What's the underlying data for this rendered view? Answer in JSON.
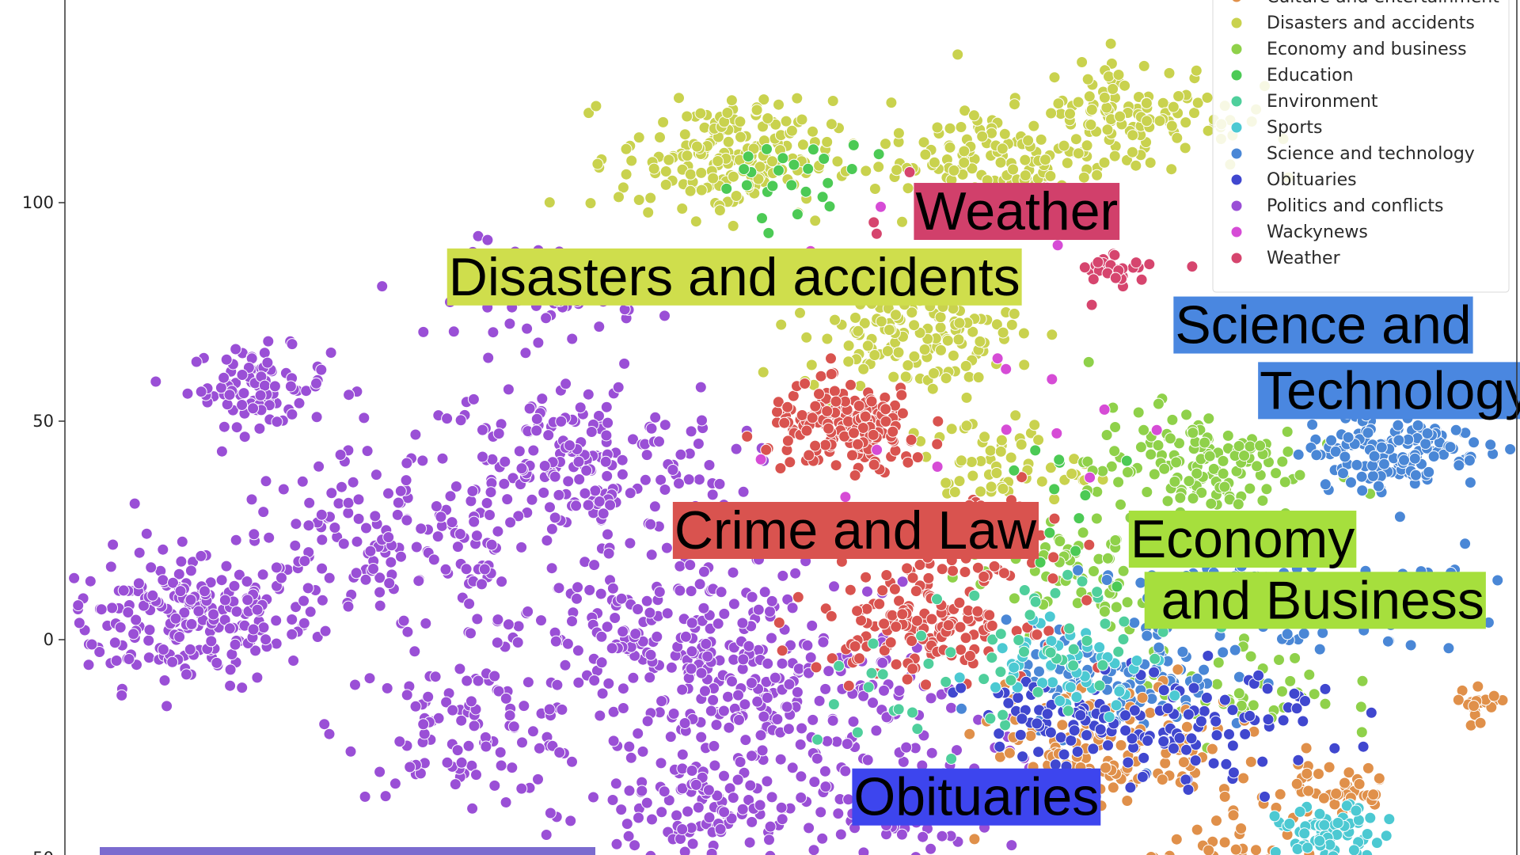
{
  "chart_data": {
    "type": "scatter",
    "title": "",
    "xlabel": "",
    "ylabel": "",
    "xlim": [
      -85,
      95
    ],
    "ylim": [
      -50,
      145
    ],
    "yticks": [
      100,
      50,
      0,
      -50
    ],
    "grid": false,
    "legend_placement": "top-right",
    "legend": [
      {
        "name": "Culture and entertainment",
        "color": "#e0904a"
      },
      {
        "name": "Disasters and accidents",
        "color": "#c9d24e"
      },
      {
        "name": "Economy and business",
        "color": "#8fd14a"
      },
      {
        "name": "Education",
        "color": "#4cca55"
      },
      {
        "name": "Environment",
        "color": "#4fcf9c"
      },
      {
        "name": "Sports",
        "color": "#4cc9d2"
      },
      {
        "name": "Science and technology",
        "color": "#4a87d6"
      },
      {
        "name": "Obituaries",
        "color": "#4047cf"
      },
      {
        "name": "Politics and conflicts",
        "color": "#9a4fd6"
      },
      {
        "name": "Wackynews",
        "color": "#d64cd6"
      },
      {
        "name": "Weather",
        "color": "#d6456e"
      }
    ],
    "series": [
      {
        "name": "Politics and conflicts",
        "color": "#9a4fd6",
        "clusters": [
          {
            "x": -70,
            "y": 5,
            "spread": 14,
            "n": 220
          },
          {
            "x": -61,
            "y": 58,
            "spread": 8,
            "n": 90
          },
          {
            "x": -45,
            "y": 20,
            "spread": 20,
            "n": 160
          },
          {
            "x": -35,
            "y": -20,
            "spread": 14,
            "n": 110
          },
          {
            "x": -22,
            "y": 40,
            "spread": 18,
            "n": 200
          },
          {
            "x": -10,
            "y": 0,
            "spread": 20,
            "n": 230
          },
          {
            "x": -25,
            "y": 80,
            "spread": 10,
            "n": 90
          },
          {
            "x": 5,
            "y": -15,
            "spread": 18,
            "n": 150
          },
          {
            "x": -5,
            "y": -40,
            "spread": 14,
            "n": 120
          },
          {
            "x": 20,
            "y": -35,
            "spread": 12,
            "n": 80
          }
        ]
      },
      {
        "name": "Disasters and accidents",
        "color": "#c9d24e",
        "clusters": [
          {
            "x": -3,
            "y": 110,
            "spread": 12,
            "n": 200
          },
          {
            "x": 30,
            "y": 110,
            "spread": 12,
            "n": 120
          },
          {
            "x": 48,
            "y": 120,
            "spread": 12,
            "n": 130
          },
          {
            "x": 20,
            "y": 70,
            "spread": 12,
            "n": 150
          },
          {
            "x": 30,
            "y": 40,
            "spread": 10,
            "n": 60
          }
        ]
      },
      {
        "name": "Economy and business",
        "color": "#8fd14a",
        "clusters": [
          {
            "x": 55,
            "y": 40,
            "spread": 12,
            "n": 140
          },
          {
            "x": 40,
            "y": 15,
            "spread": 12,
            "n": 70
          },
          {
            "x": 60,
            "y": -10,
            "spread": 12,
            "n": 50
          }
        ]
      },
      {
        "name": "Science and technology",
        "color": "#4a87d6",
        "clusters": [
          {
            "x": 80,
            "y": 45,
            "spread": 10,
            "n": 170
          },
          {
            "x": 60,
            "y": 10,
            "spread": 12,
            "n": 120
          },
          {
            "x": 45,
            "y": -10,
            "spread": 12,
            "n": 100
          },
          {
            "x": 85,
            "y": 10,
            "spread": 8,
            "n": 40
          }
        ]
      },
      {
        "name": "Crime and law",
        "color": "#d9534f",
        "clusters": [
          {
            "x": 12,
            "y": 48,
            "spread": 9,
            "n": 180
          },
          {
            "x": 22,
            "y": 5,
            "spread": 12,
            "n": 160
          },
          {
            "x": 30,
            "y": 25,
            "spread": 8,
            "n": 50
          }
        ]
      },
      {
        "name": "Culture and entertainment",
        "color": "#e0904a",
        "clusters": [
          {
            "x": 45,
            "y": -25,
            "spread": 14,
            "n": 130
          },
          {
            "x": 72,
            "y": -35,
            "spread": 8,
            "n": 50
          },
          {
            "x": 90,
            "y": -15,
            "spread": 3,
            "n": 20
          },
          {
            "x": 58,
            "y": -48,
            "spread": 8,
            "n": 30
          }
        ]
      },
      {
        "name": "Obituaries",
        "color": "#4047cf",
        "clusters": [
          {
            "x": 40,
            "y": -20,
            "spread": 12,
            "n": 90
          },
          {
            "x": 60,
            "y": -20,
            "spread": 12,
            "n": 60
          }
        ]
      },
      {
        "name": "Sports",
        "color": "#4cc9d2",
        "clusters": [
          {
            "x": 72,
            "y": -45,
            "spread": 6,
            "n": 70
          },
          {
            "x": 40,
            "y": -5,
            "spread": 10,
            "n": 50
          }
        ]
      },
      {
        "name": "Environment",
        "color": "#4fcf9c",
        "clusters": [
          {
            "x": 40,
            "y": 0,
            "spread": 14,
            "n": 40
          },
          {
            "x": 20,
            "y": -10,
            "spread": 14,
            "n": 20
          }
        ]
      },
      {
        "name": "Education",
        "color": "#4cca55",
        "clusters": [
          {
            "x": 5,
            "y": 105,
            "spread": 8,
            "n": 25
          },
          {
            "x": 40,
            "y": 30,
            "spread": 14,
            "n": 15
          }
        ]
      },
      {
        "name": "Weather",
        "color": "#d6456e",
        "clusters": [
          {
            "x": 45,
            "y": 85,
            "spread": 3,
            "n": 30
          },
          {
            "x": 30,
            "y": 95,
            "spread": 20,
            "n": 15
          }
        ]
      },
      {
        "name": "Wackynews",
        "color": "#d64cd6",
        "clusters": [
          {
            "x": 30,
            "y": 60,
            "spread": 30,
            "n": 15
          }
        ]
      }
    ],
    "annotations": [
      {
        "text": "Weather",
        "x": 33,
        "y": 98,
        "bg": "#d1406b"
      },
      {
        "text": "Disasters and accidents",
        "x": -2,
        "y": 83,
        "bg": "#cfde4c"
      },
      {
        "text": "Science and",
        "x": 71,
        "y": 72,
        "bg": "#4a87e0"
      },
      {
        "text": "Technology",
        "x": 80,
        "y": 57,
        "bg": "#4a87e0"
      },
      {
        "text": "Crime and Law",
        "x": 13,
        "y": 25,
        "bg": "#d9534f"
      },
      {
        "text": "Economy",
        "x": 61,
        "y": 23,
        "bg": "#a6df3d"
      },
      {
        "text": " and Business",
        "x": 70,
        "y": 9,
        "bg": "#a6df3d"
      },
      {
        "text": "Obituaries",
        "x": 28,
        "y": -36,
        "bg": "#3d45ee"
      }
    ]
  }
}
